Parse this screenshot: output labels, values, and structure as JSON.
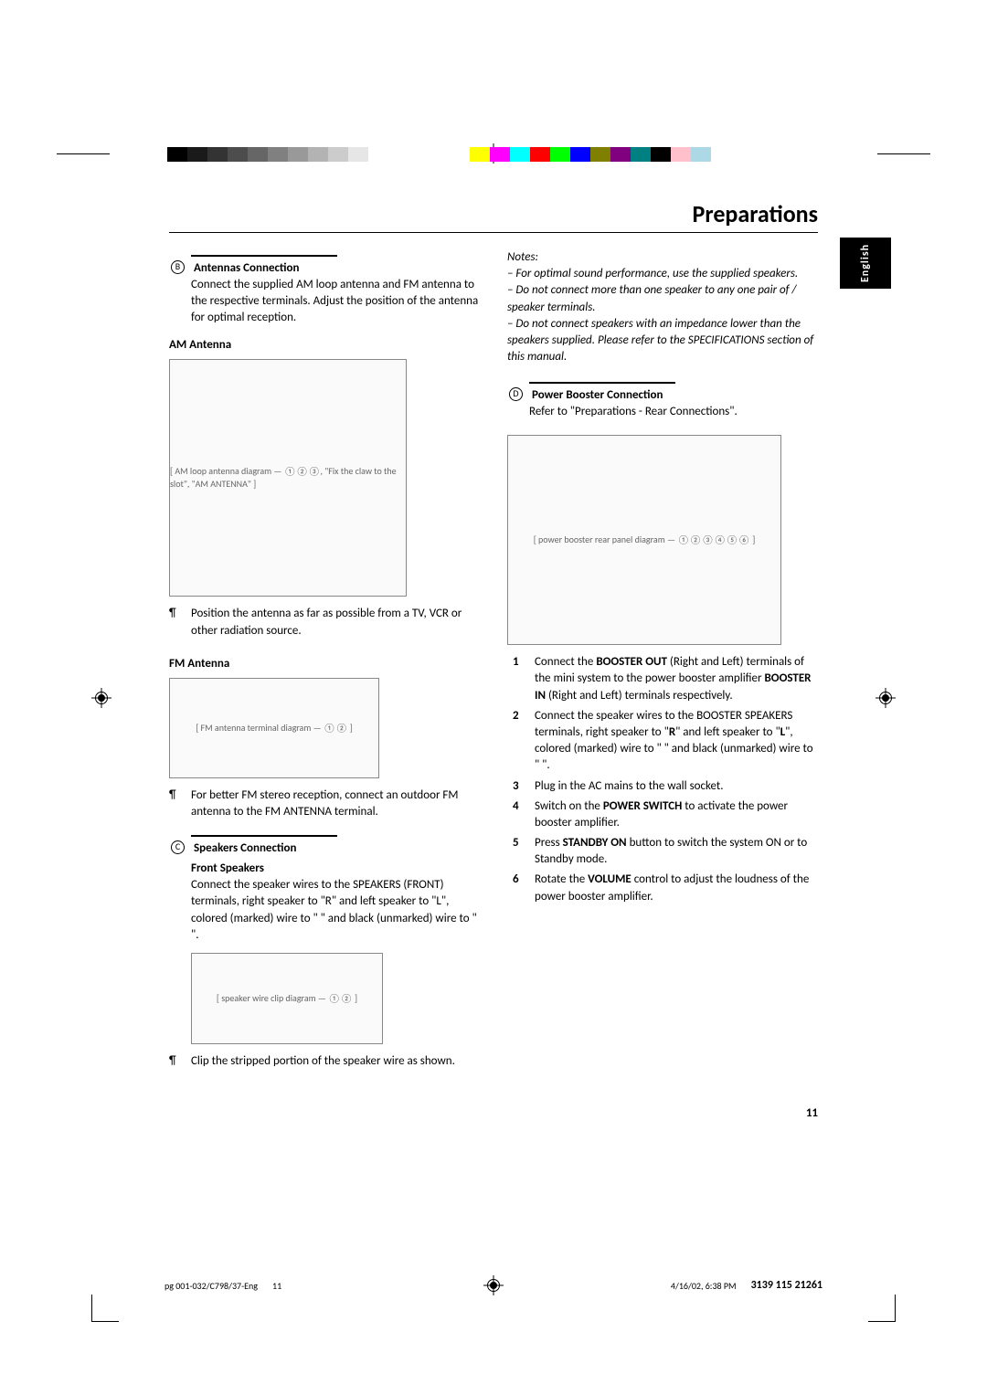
{
  "regbar": {
    "left_grays": [
      "#000000",
      "#1a1a1a",
      "#333333",
      "#4d4d4d",
      "#666666",
      "#808080",
      "#999999",
      "#b3b3b3",
      "#cccccc",
      "#e6e6e6",
      "#ffffff"
    ],
    "right_colors": [
      "#ffff00",
      "#ff00ff",
      "#00ffff",
      "#ff0000",
      "#00ff00",
      "#0000ff",
      "#808000",
      "#800080",
      "#008080",
      "#000000",
      "#ffc0cb",
      "#add8e6"
    ]
  },
  "title": "Preparations",
  "lang_tab": "English",
  "left": {
    "secB": {
      "letter": "B",
      "heading": "Antennas Connection",
      "body": "Connect the supplied AM loop antenna and FM antenna to the respective terminals. Adjust the position of the antenna for optimal reception."
    },
    "am": {
      "heading": "AM Antenna",
      "diagram_label": "[ AM loop antenna diagram — ①②③, \"Fix the claw to the slot\", \"AM ANTENNA\" ]",
      "bullet": "Position the antenna as far as possible from a TV, VCR or other radiation source."
    },
    "fm": {
      "heading": "FM Antenna",
      "diagram_label": "[ FM antenna terminal diagram — ①② ]",
      "bullet": "For better FM stereo reception, connect an outdoor FM antenna to the FM ANTENNA terminal."
    },
    "secC": {
      "letter": "C",
      "heading": "Speakers Connection",
      "sub": "Front Speakers",
      "body": "Connect the speaker wires to the SPEAKERS (FRONT) terminals, right speaker to \"R\" and left speaker to \"L\", colored (marked) wire to \"    \" and black (unmarked) wire to \"    \".",
      "diagram_label": "[ speaker wire clip diagram — ①② ]",
      "bullet": "Clip the stripped portion of the speaker wire as shown."
    }
  },
  "right": {
    "notes_head": "Notes:",
    "notes": [
      "For optimal sound performance, use the supplied speakers.",
      "Do not connect more than one speaker to any one pair of     /     speaker terminals.",
      "Do not connect speakers with an impedance lower than the speakers supplied. Please refer to the SPECIFICATIONS section of this manual."
    ],
    "secD": {
      "letter": "D",
      "heading": "Power Booster Connection",
      "body": "Refer to \"Preparations - Rear Connections\".",
      "diagram_label": "[ power booster rear panel diagram — ①②③④⑤⑥ ]"
    },
    "steps": [
      {
        "n": "1",
        "html": "Connect the <b>BOOSTER OUT</b> (Right and Left) terminals of the mini system to the power booster amplifier <b>BOOSTER IN</b> (Right and Left) terminals respectively."
      },
      {
        "n": "2",
        "html": "Connect the speaker wires to the BOOSTER SPEAKERS terminals, right speaker to \"<b>R</b>\" and left speaker to \"<b>L</b>\", colored (marked) wire to \"    \" and black (unmarked) wire to \"    \"."
      },
      {
        "n": "3",
        "html": "Plug in the AC mains to the wall socket."
      },
      {
        "n": "4",
        "html": "Switch on the <b>POWER SWITCH</b> to activate the power booster amplifier."
      },
      {
        "n": "5",
        "html": "Press <b>STANDBY ON</b> button to switch the system ON or to Standby mode."
      },
      {
        "n": "6",
        "html": "Rotate the <b>VOLUME</b> control to adjust the loudness of the power booster amplifier."
      }
    ]
  },
  "page_number": "11",
  "footer": {
    "file": "pg 001-032/C798/37-Eng",
    "pg": "11",
    "datetime": "4/16/02, 6:38 PM",
    "docnum": "3139 115 21261"
  }
}
